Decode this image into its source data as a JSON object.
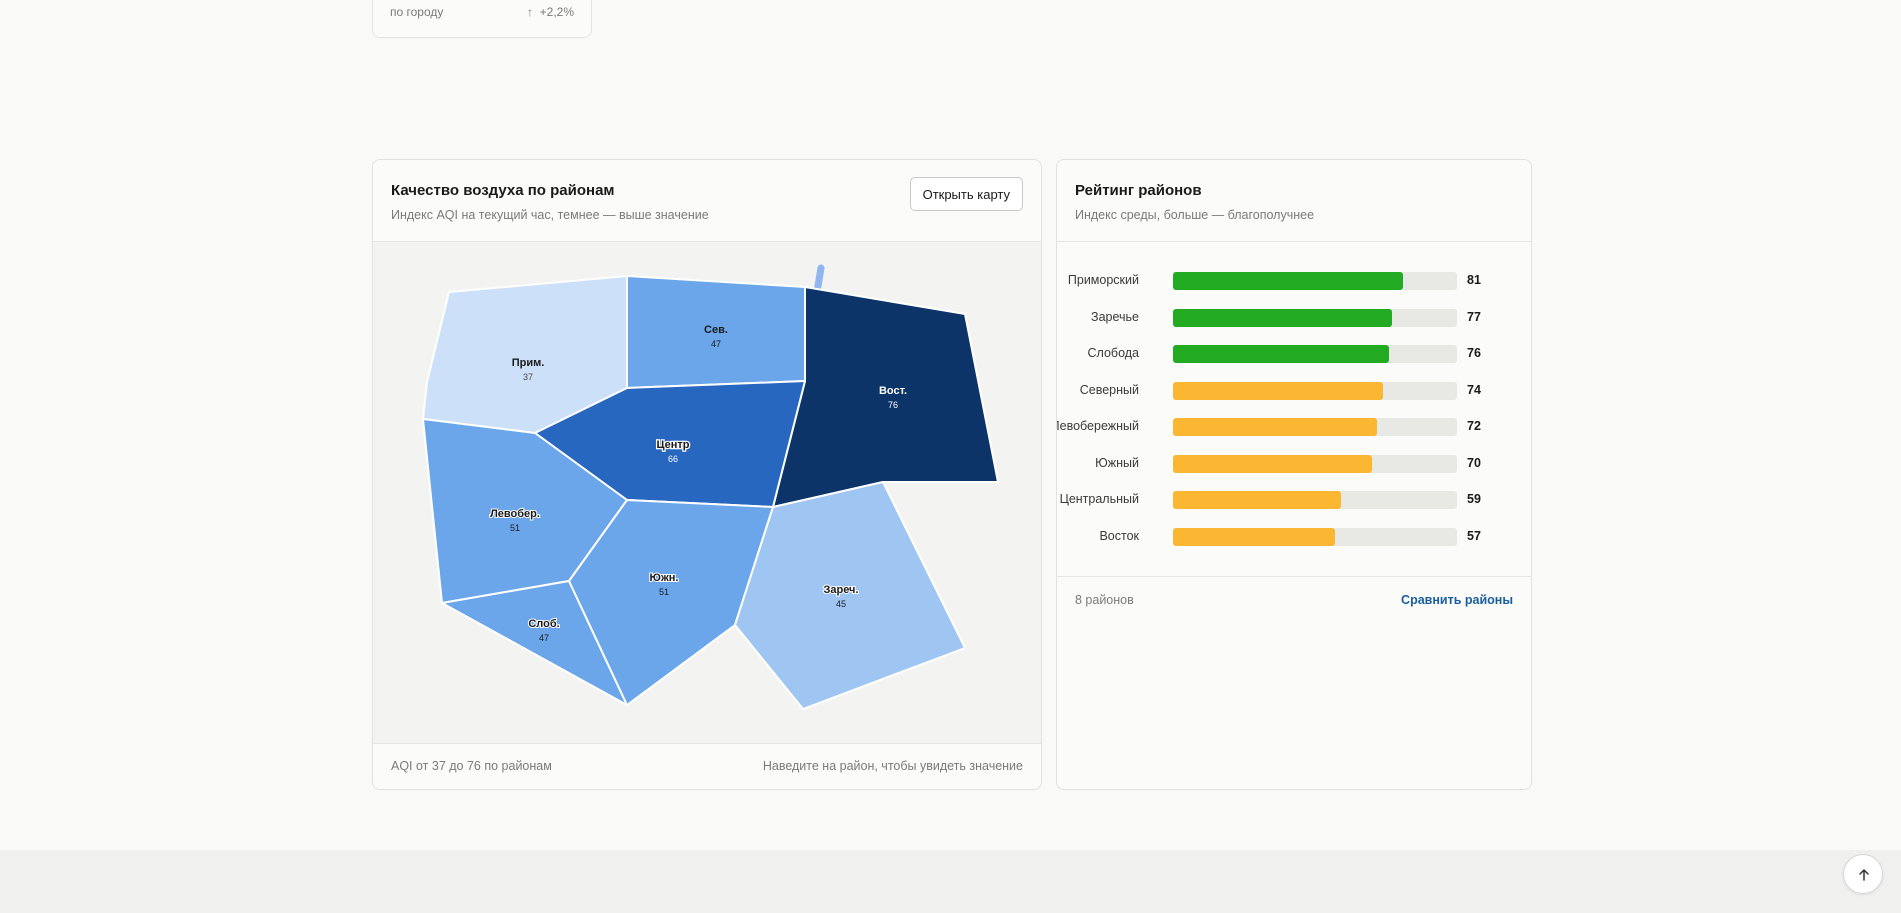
{
  "top_card": {
    "label": "по городу",
    "trend_icon": "arrow-up-icon",
    "trend": "+2,2%"
  },
  "map_card": {
    "title": "Качество воздуха по районам",
    "subtitle": "Индекс AQI на текущий час, темнее — выше значение",
    "open_button": "Открыть карту",
    "footer_left": "AQI от 37 до 76 по районам",
    "footer_right": "Наведите на район, чтобы увидеть значение",
    "districts": [
      {
        "key": "prim",
        "label": "Прим.",
        "value": "37"
      },
      {
        "key": "sev",
        "label": "Сев.",
        "value": "47"
      },
      {
        "key": "vost",
        "label": "Вост.",
        "value": "76"
      },
      {
        "key": "center",
        "label": "Центр",
        "value": "66"
      },
      {
        "key": "levober",
        "label": "Левобер.",
        "value": "51"
      },
      {
        "key": "slob",
        "label": "Слоб.",
        "value": "47"
      },
      {
        "key": "yuzhn",
        "label": "Южн.",
        "value": "51"
      },
      {
        "key": "zarech",
        "label": "Зареч.",
        "value": "45"
      }
    ]
  },
  "rank_card": {
    "title": "Рейтинг районов",
    "subtitle": "Индекс среды, больше — благополучнее",
    "count": "8 районов",
    "compare_link": "Сравнить районы",
    "colors": {
      "high": "#22aa22",
      "mid": "#fbb731",
      "track": "#e8e8e4"
    },
    "chart_data": {
      "type": "bar",
      "orientation": "horizontal",
      "categories": [
        "Приморский",
        "Заречье",
        "Слобода",
        "Северный",
        "Левобережный",
        "Южный",
        "Центральный",
        "Восток"
      ],
      "values": [
        81,
        77,
        76,
        74,
        72,
        70,
        59,
        57
      ],
      "xlim": [
        0,
        100
      ]
    }
  },
  "scroll_top": {
    "icon": "arrow-up-icon"
  }
}
